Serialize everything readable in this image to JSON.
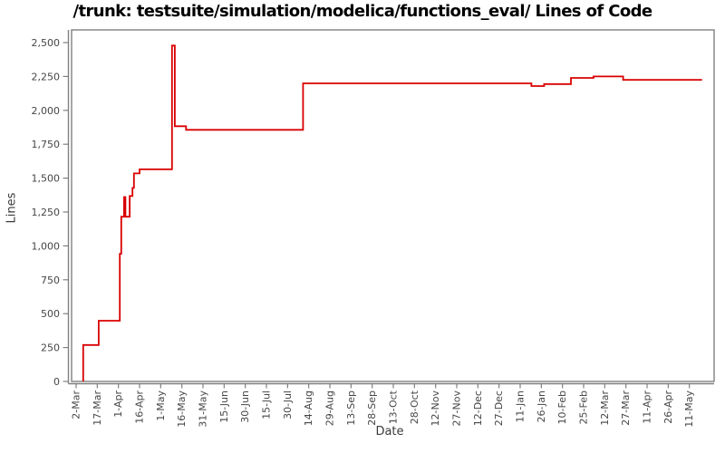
{
  "title": "/trunk: testsuite/simulation/modelica/functions_eval/ Lines of Code",
  "chart_data": {
    "type": "line",
    "style": "step-after",
    "title": "/trunk: testsuite/simulation/modelica/functions_eval/ Lines of Code",
    "xlabel": "Date",
    "ylabel": "Lines",
    "grid": false,
    "legend": "none",
    "x_tick_labels": [
      "2-Mar",
      "17-Mar",
      "1-Apr",
      "16-Apr",
      "1-May",
      "16-May",
      "31-May",
      "15-Jun",
      "30-Jun",
      "15-Jul",
      "30-Jul",
      "14-Aug",
      "29-Aug",
      "13-Sep",
      "28-Sep",
      "13-Oct",
      "28-Oct",
      "12-Nov",
      "27-Nov",
      "12-Dec",
      "27-Dec",
      "11-Jan",
      "26-Jan",
      "10-Feb",
      "25-Feb",
      "12-Mar",
      "27-Mar",
      "11-Apr",
      "26-Apr",
      "11-May"
    ],
    "x_tick_interval_days": 15,
    "y_ticks": [
      0,
      250,
      500,
      750,
      1000,
      1250,
      1500,
      1750,
      2000,
      2250,
      2500
    ],
    "y_tick_labels": [
      "0",
      "250",
      "500",
      "750",
      "1,000",
      "1,250",
      "1,500",
      "1,750",
      "2,000",
      "2,250",
      "2,500"
    ],
    "ylim": [
      0,
      2594
    ],
    "xlim_days": [
      -3,
      453
    ],
    "series": [
      {
        "name": "Lines of Code",
        "color": "#d90000",
        "start_day": 5,
        "start_value": 0,
        "end_day": 444,
        "steps": [
          {
            "day": 5,
            "date": "7-Mar",
            "value": 269
          },
          {
            "day": 16,
            "date": "18-Mar",
            "value": 448
          },
          {
            "day": 31,
            "date": "2-Apr",
            "value": 942
          },
          {
            "day": 32,
            "date": "3-Apr",
            "value": 1215
          },
          {
            "day": 34,
            "date": "5-Apr",
            "value": 1360
          },
          {
            "day": 35,
            "date": "6-Apr",
            "value": 1215
          },
          {
            "day": 38,
            "date": "9-Apr",
            "value": 1368
          },
          {
            "day": 40,
            "date": "11-Apr",
            "value": 1428
          },
          {
            "day": 41,
            "date": "12-Apr",
            "value": 1535
          },
          {
            "day": 45,
            "date": "16-Apr",
            "value": 1565
          },
          {
            "day": 68,
            "date": "9-May",
            "value": 2478
          },
          {
            "day": 70,
            "date": "11-May",
            "value": 1883
          },
          {
            "day": 78,
            "date": "19-May",
            "value": 1856
          },
          {
            "day": 161,
            "date": "10-Aug",
            "value": 2199
          },
          {
            "day": 323,
            "date": "19-Jan",
            "value": 2179
          },
          {
            "day": 332,
            "date": "28-Jan",
            "value": 2194
          },
          {
            "day": 351,
            "date": "17-Feb",
            "value": 2239
          },
          {
            "day": 367,
            "date": "5-Mar",
            "value": 2250
          },
          {
            "day": 388,
            "date": "26-Mar",
            "value": 2225
          }
        ]
      }
    ]
  },
  "colors": {
    "line": "#d90000",
    "frame": "#808080",
    "tick_text": "#464646",
    "axis_label_text": "#3a3a3a",
    "title_text": "#000000",
    "background": "#ffffff"
  }
}
